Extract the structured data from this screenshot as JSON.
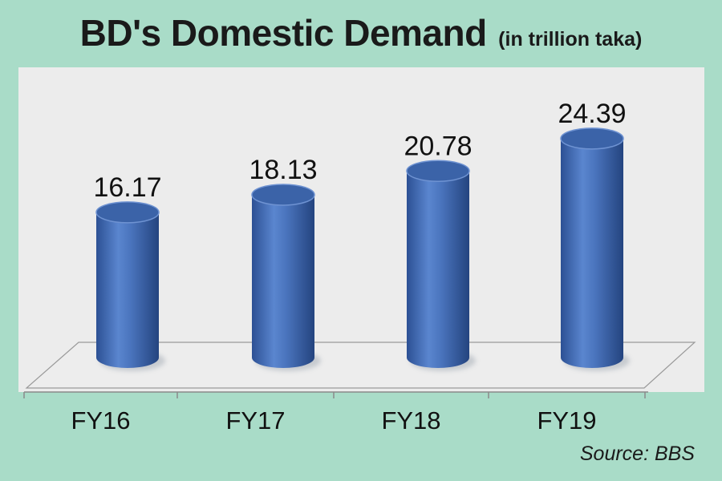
{
  "chart_data": {
    "type": "bar",
    "title": "BD's Domestic Demand",
    "subtitle": "(in trillion taka)",
    "categories": [
      "FY16",
      "FY17",
      "FY18",
      "FY19"
    ],
    "values": [
      16.17,
      18.13,
      20.78,
      24.39
    ],
    "value_labels": [
      "16.17",
      "18.13",
      "20.78",
      "24.39"
    ],
    "xlabel": "",
    "ylabel": "",
    "grid": false,
    "legend": "none",
    "source": "Source: BBS",
    "colors": {
      "background": "#a9dcc8",
      "plot_area": "#ececec",
      "bar": "#4a74bd",
      "bar_dark": "#2a4d8c",
      "bar_light": "#7a9ed8",
      "bar_top": "#3b63a8"
    }
  }
}
